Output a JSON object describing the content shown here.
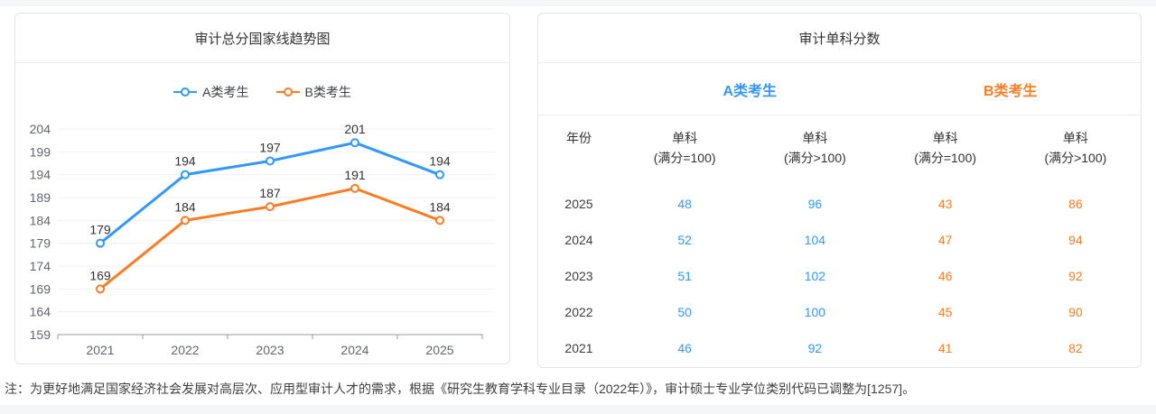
{
  "colors": {
    "series_a_blue": "#3398fc",
    "series_b_orange": "#fd7c23",
    "grid_line": "#edf1f7",
    "axis_line": "#999999",
    "tick_label": "#606670",
    "data_label": "#333333"
  },
  "trend_panel": {
    "title": "审计总分国家线趋势图"
  },
  "chart_data": {
    "type": "line",
    "title": "审计总分国家线趋势图",
    "x": [
      "2021",
      "2022",
      "2023",
      "2024",
      "2025"
    ],
    "series": [
      {
        "name": "A类考生",
        "color": "#3398fc",
        "values": [
          179,
          194,
          197,
          201,
          194
        ]
      },
      {
        "name": "B类考生",
        "color": "#fd7c23",
        "values": [
          169,
          184,
          187,
          191,
          184
        ]
      }
    ],
    "ylim": [
      159,
      204
    ],
    "ytick_step": 5,
    "yticks": [
      204,
      199,
      194,
      189,
      184,
      179,
      174,
      169,
      164,
      159
    ],
    "grid": true,
    "legend_position": "top",
    "point_labels_shown": true
  },
  "score_panel": {
    "title": "审计单科分数",
    "group_headers": [
      {
        "label": "A类考生",
        "color": "#3398fc"
      },
      {
        "label": "B类考生",
        "color": "#fd7c23"
      }
    ],
    "year_header": "年份",
    "score_columns": [
      {
        "line1": "单科",
        "line2": "(满分=100)",
        "group": "A"
      },
      {
        "line1": "单科",
        "line2": "(满分>100)",
        "group": "A"
      },
      {
        "line1": "单科",
        "line2": "(满分=100)",
        "group": "B"
      },
      {
        "line1": "单科",
        "line2": "(满分>100)",
        "group": "B"
      }
    ],
    "rows": [
      {
        "year": "2025",
        "scores": [
          "48",
          "96",
          "43",
          "86"
        ]
      },
      {
        "year": "2024",
        "scores": [
          "52",
          "104",
          "47",
          "94"
        ]
      },
      {
        "year": "2023",
        "scores": [
          "51",
          "102",
          "46",
          "92"
        ]
      },
      {
        "year": "2022",
        "scores": [
          "50",
          "100",
          "45",
          "90"
        ]
      },
      {
        "year": "2021",
        "scores": [
          "46",
          "92",
          "41",
          "82"
        ]
      }
    ]
  },
  "footer": {
    "note": "注：为更好地满足国家经济社会发展对高层次、应用型审计人才的需求，根据《研究生教育学科专业目录（2022年）》，审计硕士专业学位类别代码已调整为[1257]。"
  }
}
